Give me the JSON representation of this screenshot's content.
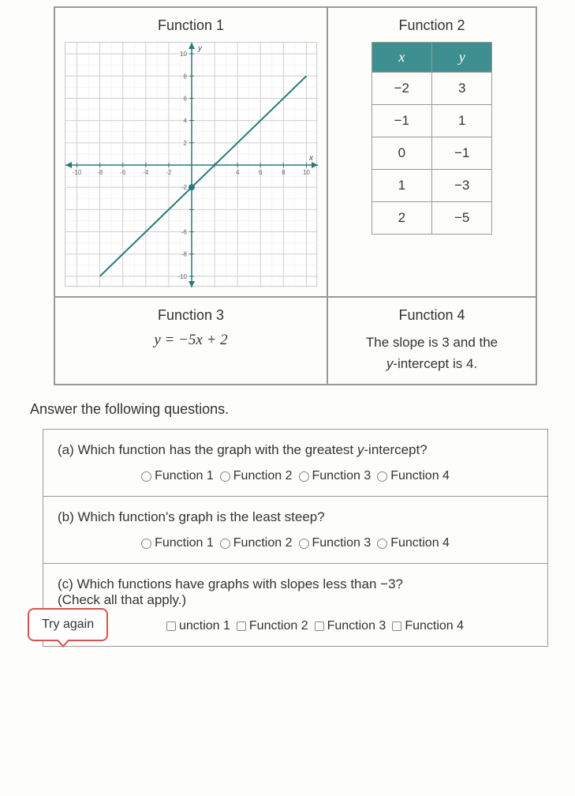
{
  "functions": {
    "f1": {
      "title": "Function 1"
    },
    "f2": {
      "title": "Function 2",
      "table": {
        "headers": [
          "x",
          "y"
        ],
        "rows": [
          [
            "−2",
            "3"
          ],
          [
            "−1",
            "1"
          ],
          [
            "0",
            "−1"
          ],
          [
            "1",
            "−3"
          ],
          [
            "2",
            "−5"
          ]
        ]
      }
    },
    "f3": {
      "title": "Function 3",
      "equation": "y = −5x + 2"
    },
    "f4": {
      "title": "Function 4",
      "desc1": "The slope is 3 and the",
      "desc2": "y-intercept is 4."
    }
  },
  "graph": {
    "xlim": [
      -11,
      11
    ],
    "ylim": [
      -11,
      11
    ],
    "tick_major": 2,
    "axis_color": "#2a7a7a",
    "grid_color": "#d0d0d0",
    "minor_grid_color": "#eeeeee",
    "line_color": "#2a7a7a",
    "point_color": "#2a7a7a",
    "point": [
      0,
      -2
    ],
    "line_p1": [
      -8,
      -10
    ],
    "line_p2": [
      10,
      8
    ],
    "tick_labels_x": [
      -10,
      -8,
      -6,
      -4,
      -2,
      4,
      6,
      8,
      10
    ],
    "tick_labels_y": [
      10,
      8,
      6,
      4,
      2,
      -2,
      -6,
      -8,
      -10
    ],
    "axis_label_x": "x",
    "axis_label_y": "y"
  },
  "prompt": "Answer the following questions.",
  "questions": {
    "a": {
      "text": "(a) Which function has the graph with the greatest y-intercept?",
      "type": "radio",
      "options": [
        "Function 1",
        "Function 2",
        "Function 3",
        "Function 4"
      ]
    },
    "b": {
      "text": "(b) Which function's graph is the least steep?",
      "type": "radio",
      "options": [
        "Function 1",
        "Function 2",
        "Function 3",
        "Function 4"
      ]
    },
    "c": {
      "text1": "(c) Which functions have graphs with slopes less than −3?",
      "text2": "(Check all that apply.)",
      "type": "checkbox",
      "options": [
        "unction 1",
        "Function 2",
        "Function 3",
        "Function 4"
      ]
    }
  },
  "tryAgain": "Try again"
}
